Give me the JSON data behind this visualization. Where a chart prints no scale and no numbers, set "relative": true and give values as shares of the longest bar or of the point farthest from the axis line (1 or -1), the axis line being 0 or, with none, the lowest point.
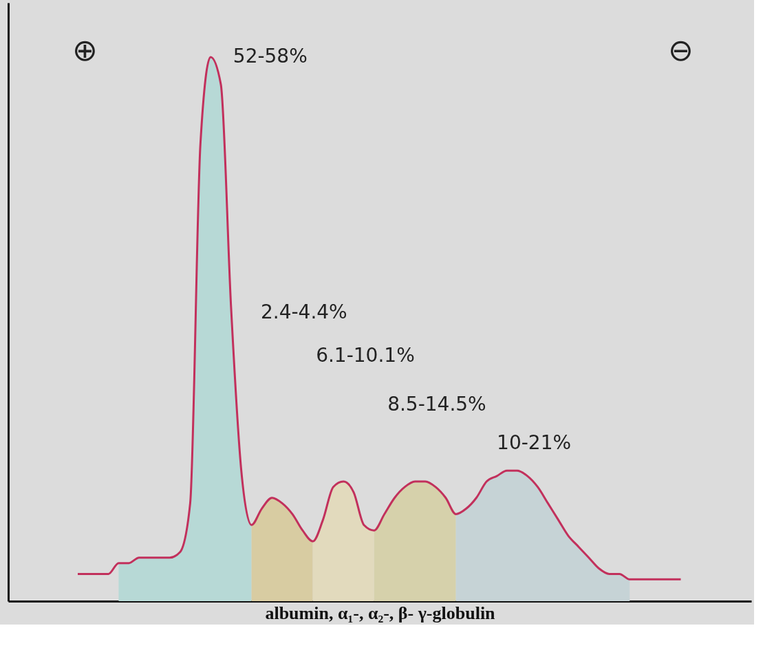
{
  "chart_data": {
    "type": "area",
    "relative": true,
    "tick_labels": false,
    "xlabel": "albumin, α₁-, α₂-, β-   γ-globulin",
    "annotations": [
      "⊕",
      "⊖",
      "52-58%",
      "2.4-4.4%",
      "6.1-10.1%",
      "8.5-14.5%",
      "10-21%"
    ],
    "categories": [
      null,
      null,
      null,
      null,
      null,
      null,
      null,
      null,
      null,
      null,
      null,
      null,
      null,
      null,
      null,
      null,
      null,
      null,
      null,
      null,
      null,
      null,
      null,
      null,
      null,
      null,
      null,
      null,
      null,
      null,
      null,
      null,
      null,
      null,
      null,
      null,
      null,
      null,
      null,
      null,
      null,
      null,
      null,
      null,
      null,
      null,
      null,
      null,
      null,
      null,
      null,
      null,
      null,
      null,
      null,
      null,
      null,
      null,
      null,
      null
    ],
    "series": [
      {
        "color": "#b7d9d6",
        "values": [
          null,
          null,
          null,
          null,
          0.07,
          0.07,
          0.08,
          0.08,
          0.08,
          0.08,
          0.09,
          0.18,
          0.84,
          1.0,
          0.95,
          0.54,
          0.24,
          0.14,
          null,
          null,
          null,
          null,
          null,
          null,
          null,
          null,
          null,
          null,
          null,
          null,
          null,
          null,
          null,
          null,
          null,
          null,
          null,
          null,
          null,
          null,
          null,
          null,
          null,
          null,
          null,
          null,
          null,
          null,
          null,
          null,
          null,
          null,
          null,
          null,
          null,
          null,
          null,
          null,
          null,
          null
        ]
      },
      {
        "color": "#d8cca2",
        "values": [
          null,
          null,
          null,
          null,
          null,
          null,
          null,
          null,
          null,
          null,
          null,
          null,
          null,
          null,
          null,
          null,
          null,
          0.14,
          0.17,
          0.19,
          0.18,
          0.16,
          0.13,
          0.11,
          null,
          null,
          null,
          null,
          null,
          null,
          null,
          null,
          null,
          null,
          null,
          null,
          null,
          null,
          null,
          null,
          null,
          null,
          null,
          null,
          null,
          null,
          null,
          null,
          null,
          null,
          null,
          null,
          null,
          null,
          null,
          null,
          null,
          null,
          null,
          null
        ]
      },
      {
        "color": "#e2dabd",
        "values": [
          null,
          null,
          null,
          null,
          null,
          null,
          null,
          null,
          null,
          null,
          null,
          null,
          null,
          null,
          null,
          null,
          null,
          null,
          null,
          null,
          null,
          null,
          null,
          0.11,
          0.15,
          0.21,
          0.22,
          0.2,
          0.14,
          0.13,
          null,
          null,
          null,
          null,
          null,
          null,
          null,
          null,
          null,
          null,
          null,
          null,
          null,
          null,
          null,
          null,
          null,
          null,
          null,
          null,
          null,
          null,
          null,
          null,
          null,
          null,
          null,
          null,
          null,
          null
        ]
      },
      {
        "color": "#d6d1ab",
        "values": [
          null,
          null,
          null,
          null,
          null,
          null,
          null,
          null,
          null,
          null,
          null,
          null,
          null,
          null,
          null,
          null,
          null,
          null,
          null,
          null,
          null,
          null,
          null,
          null,
          null,
          null,
          null,
          null,
          null,
          0.13,
          0.16,
          0.19,
          0.21,
          0.22,
          0.22,
          0.21,
          0.19,
          0.16,
          null,
          null,
          null,
          null,
          null,
          null,
          null,
          null,
          null,
          null,
          null,
          null,
          null,
          null,
          null,
          null,
          null,
          null,
          null,
          null,
          null,
          null
        ]
      },
      {
        "color": "#c6d3d6",
        "values": [
          null,
          null,
          null,
          null,
          null,
          null,
          null,
          null,
          null,
          null,
          null,
          null,
          null,
          null,
          null,
          null,
          null,
          null,
          null,
          null,
          null,
          null,
          null,
          null,
          null,
          null,
          null,
          null,
          null,
          null,
          null,
          null,
          null,
          null,
          null,
          null,
          null,
          0.16,
          0.17,
          0.19,
          0.22,
          0.23,
          0.24,
          0.24,
          0.23,
          0.21,
          0.18,
          0.15,
          0.12,
          0.1,
          0.08,
          0.06,
          0.05,
          0.05,
          0.04,
          null,
          null,
          null,
          null,
          null
        ]
      },
      {
        "type": "line",
        "color": "#c2305c",
        "values": [
          0.05,
          0.05,
          0.05,
          0.05,
          0.07,
          0.07,
          0.08,
          0.08,
          0.08,
          0.08,
          0.09,
          0.18,
          0.84,
          1.0,
          0.95,
          0.54,
          0.24,
          0.14,
          0.17,
          0.19,
          0.18,
          0.16,
          0.13,
          0.11,
          0.15,
          0.21,
          0.22,
          0.2,
          0.14,
          0.13,
          0.16,
          0.19,
          0.21,
          0.22,
          0.22,
          0.21,
          0.19,
          0.16,
          0.17,
          0.19,
          0.22,
          0.23,
          0.24,
          0.24,
          0.23,
          0.21,
          0.18,
          0.15,
          0.12,
          0.1,
          0.08,
          0.06,
          0.05,
          0.05,
          0.04,
          0.04,
          0.04,
          0.04,
          0.04,
          0.04
        ]
      }
    ]
  }
}
